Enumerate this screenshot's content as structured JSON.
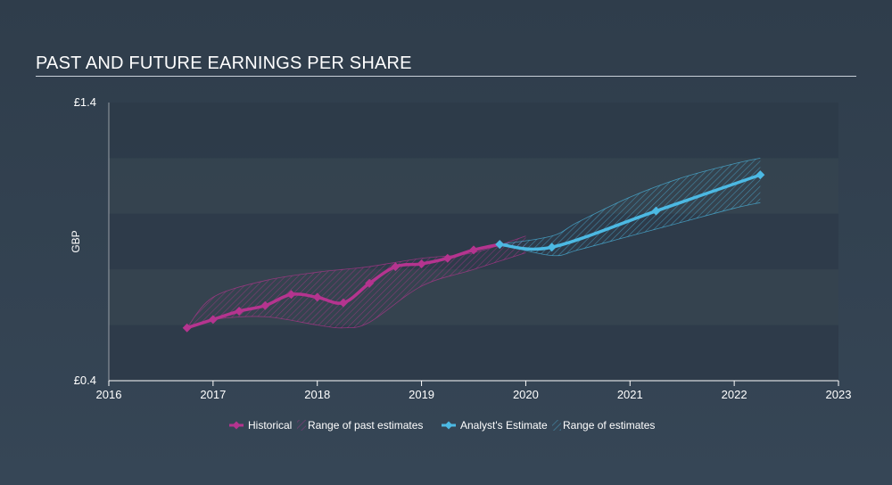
{
  "title": "PAST AND FUTURE EARNINGS PER SHARE",
  "chart_data": {
    "type": "line",
    "title": "PAST AND FUTURE EARNINGS PER SHARE",
    "ylabel": "GBP",
    "ylim": [
      0.4,
      1.4
    ],
    "xlim": [
      2016,
      2023
    ],
    "y_tick_labels": [
      "£1.4",
      "£0.4"
    ],
    "x_tick_labels": [
      "2016",
      "2017",
      "2018",
      "2019",
      "2020",
      "2021",
      "2022",
      "2023"
    ],
    "x_ticks": [
      2016,
      2017,
      2018,
      2019,
      2020,
      2021,
      2022,
      2023
    ],
    "legend": {
      "placement": "bottom-center",
      "entries": [
        "Historical",
        "Range of past estimates",
        "Analyst's Estimate",
        "Range of estimates"
      ]
    },
    "colors": {
      "historical": "#b5348f",
      "past_range": "#b5348f",
      "estimate": "#4cb9e3",
      "estimate_range": "#4cb9e3"
    },
    "series": [
      {
        "name": "Historical",
        "x": [
          2016.75,
          2017.0,
          2017.25,
          2017.5,
          2017.75,
          2018.0,
          2018.25,
          2018.5,
          2018.75,
          2019.0,
          2019.25,
          2019.5,
          2019.75
        ],
        "values": [
          0.59,
          0.62,
          0.65,
          0.67,
          0.71,
          0.7,
          0.68,
          0.75,
          0.81,
          0.82,
          0.84,
          0.87,
          0.89
        ]
      },
      {
        "name": "Analyst's Estimate",
        "x": [
          2019.75,
          2020.25,
          2021.25,
          2022.25
        ],
        "values": [
          0.89,
          0.88,
          1.01,
          1.14
        ]
      }
    ],
    "past_estimate_range": {
      "x": [
        2016.75,
        2017.0,
        2017.5,
        2018.0,
        2018.25,
        2018.5,
        2019.0,
        2019.5,
        2020.0
      ],
      "upper": [
        0.59,
        0.7,
        0.76,
        0.79,
        0.8,
        0.81,
        0.84,
        0.86,
        0.92
      ],
      "lower": [
        0.59,
        0.62,
        0.63,
        0.6,
        0.59,
        0.61,
        0.74,
        0.8,
        0.86
      ]
    },
    "estimate_range": {
      "x": [
        2019.75,
        2020.25,
        2020.5,
        2021.0,
        2021.5,
        2022.0,
        2022.25
      ],
      "upper": [
        0.89,
        0.92,
        0.97,
        1.06,
        1.13,
        1.18,
        1.2
      ],
      "lower": [
        0.89,
        0.85,
        0.87,
        0.92,
        0.97,
        1.02,
        1.04
      ]
    }
  }
}
